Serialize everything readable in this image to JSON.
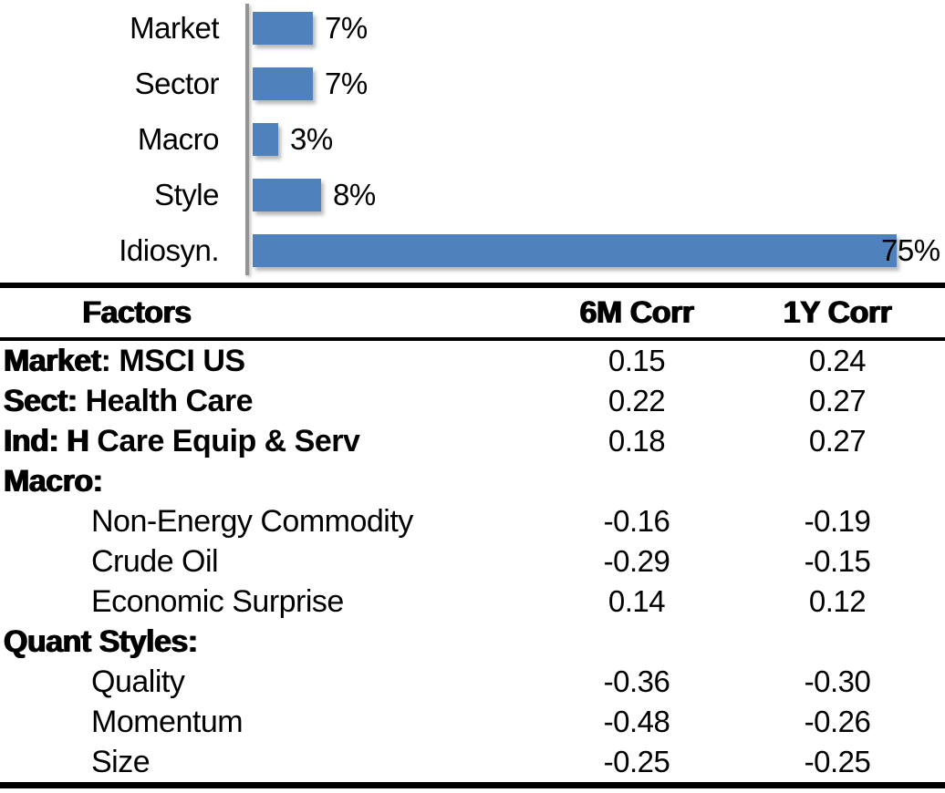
{
  "chart_data": [
    {
      "type": "bar",
      "orientation": "horizontal",
      "title": "",
      "categories": [
        "Market",
        "Sector",
        "Macro",
        "Style",
        "Idiosyn."
      ],
      "values": [
        7,
        7,
        3,
        8,
        75
      ],
      "value_labels": [
        "7%",
        "7%",
        "3%",
        "8%",
        "75%"
      ],
      "xlim": [
        0,
        80
      ],
      "grid": false,
      "legend_position": "none",
      "bar_color": "#4f81bd",
      "axis_color": "#949494"
    },
    {
      "type": "table",
      "columns": [
        "Factors",
        "6M Corr",
        "1Y Corr"
      ],
      "rows": [
        {
          "bold": "Market",
          "rest": ": MSCI US",
          "c6m": "0.15",
          "c1y": "0.24"
        },
        {
          "bold": "Sect:",
          "rest": " Health Care",
          "c6m": "0.22",
          "c1y": "0.27"
        },
        {
          "bold": "Ind: H",
          "rest": " Care Equip & Serv",
          "c6m": "0.18",
          "c1y": "0.27"
        },
        {
          "bold": "Macro:",
          "rest": "",
          "c6m": "",
          "c1y": ""
        },
        {
          "bold": "",
          "rest": "Non-Energy Commodity",
          "c6m": "-0.16",
          "c1y": "-0.19"
        },
        {
          "bold": "",
          "rest": "Crude Oil",
          "c6m": "-0.29",
          "c1y": "-0.15"
        },
        {
          "bold": "",
          "rest": "Economic Surprise",
          "c6m": "0.14",
          "c1y": "0.12"
        },
        {
          "bold": "Quant Styles:",
          "rest": "",
          "c6m": "",
          "c1y": ""
        },
        {
          "bold": "",
          "rest": "Quality",
          "c6m": "-0.36",
          "c1y": "-0.30"
        },
        {
          "bold": "",
          "rest": "Momentum",
          "c6m": "-0.48",
          "c1y": "-0.26"
        },
        {
          "bold": "",
          "rest": "Size",
          "c6m": "-0.25",
          "c1y": "-0.25"
        }
      ]
    }
  ]
}
